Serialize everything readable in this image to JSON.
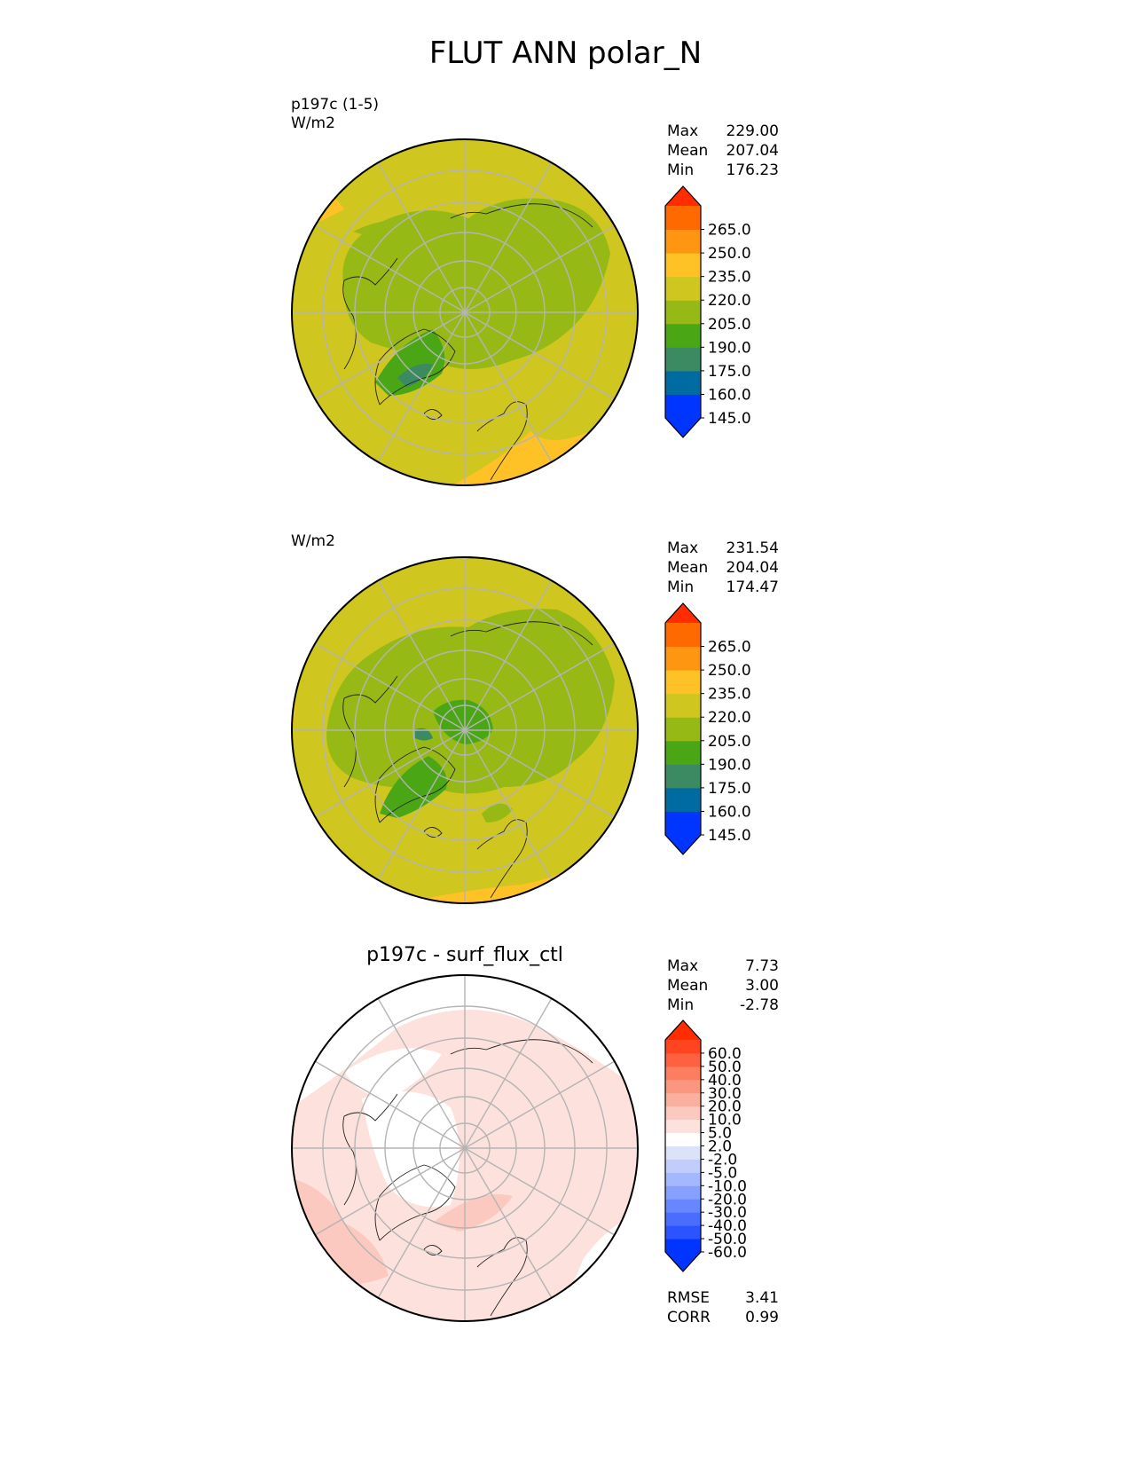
{
  "figure_title": "FLUT ANN polar_N",
  "colors": {
    "fill_145": "#0034ff",
    "fill_160": "#006ba0",
    "fill_175": "#3b8a62",
    "fill_190": "#4ba615",
    "fill_205": "#97b916",
    "fill_220": "#d0c620",
    "fill_235": "#ffc226",
    "fill_250": "#ff9612",
    "fill_265": "#ff6a00",
    "fill_max": "#ff2d00",
    "diff_levels": [
      "#0034ff",
      "#2b53ff",
      "#4a6dff",
      "#6887ff",
      "#86a0ff",
      "#a4b8ff",
      "#c2cdfc",
      "#dce2fa",
      "#ffffff",
      "#fde1dc",
      "#fbc9bf",
      "#fbb09f",
      "#fc977f",
      "#fd7d60",
      "#fe6140",
      "#ff4520",
      "#ff2d00"
    ]
  },
  "panels": [
    {
      "name": "test",
      "title_line1": "p197c (1-5)",
      "title_line2": "W/m2",
      "center_title": "",
      "stats": [
        {
          "label": "Max",
          "value": "229.00"
        },
        {
          "label": "Mean",
          "value": "207.04"
        },
        {
          "label": "Min",
          "value": "176.23"
        }
      ],
      "colorbar_ticks": [
        "265.0",
        "250.0",
        "235.0",
        "220.0",
        "205.0",
        "190.0",
        "175.0",
        "160.0",
        "145.0"
      ]
    },
    {
      "name": "reference",
      "title_line1": "",
      "title_line2": "W/m2",
      "center_title": "",
      "stats": [
        {
          "label": "Max",
          "value": "231.54"
        },
        {
          "label": "Mean",
          "value": "204.04"
        },
        {
          "label": "Min",
          "value": "174.47"
        }
      ],
      "colorbar_ticks": [
        "265.0",
        "250.0",
        "235.0",
        "220.0",
        "205.0",
        "190.0",
        "175.0",
        "160.0",
        "145.0"
      ]
    },
    {
      "name": "difference",
      "title_line1": "",
      "title_line2": "",
      "center_title": "p197c - surf_flux_ctl",
      "stats": [
        {
          "label": "Max",
          "value": "7.73"
        },
        {
          "label": "Mean",
          "value": "3.00"
        },
        {
          "label": "Min",
          "value": "-2.78"
        }
      ],
      "colorbar_ticks": [
        "60.0",
        "50.0",
        "40.0",
        "30.0",
        "20.0",
        "10.0",
        "5.0",
        "2.0",
        "-2.0",
        "-5.0",
        "-10.0",
        "-20.0",
        "-30.0",
        "-40.0",
        "-50.0",
        "-60.0"
      ],
      "footer": [
        {
          "label": "RMSE",
          "value": "3.41"
        },
        {
          "label": "CORR",
          "value": "0.99"
        }
      ]
    }
  ],
  "chart_data": {
    "type": "heatmap",
    "title": "FLUT ANN polar_N",
    "projection": "north polar stereographic",
    "units": "W/m2",
    "panels": [
      {
        "title": "p197c (1-5)",
        "max": 229.0,
        "mean": 207.04,
        "min": 176.23,
        "colorbar_levels": [
          145,
          160,
          175,
          190,
          205,
          220,
          235,
          250,
          265
        ]
      },
      {
        "title": "",
        "max": 231.54,
        "mean": 204.04,
        "min": 174.47,
        "colorbar_levels": [
          145,
          160,
          175,
          190,
          205,
          220,
          235,
          250,
          265
        ]
      },
      {
        "title": "p197c - surf_flux_ctl",
        "max": 7.73,
        "mean": 3.0,
        "min": -2.78,
        "rmse": 3.41,
        "corr": 0.99,
        "colorbar_levels": [
          -60,
          -50,
          -40,
          -30,
          -20,
          -10,
          -5,
          -2,
          2,
          5,
          10,
          20,
          30,
          40,
          50,
          60
        ]
      }
    ]
  }
}
